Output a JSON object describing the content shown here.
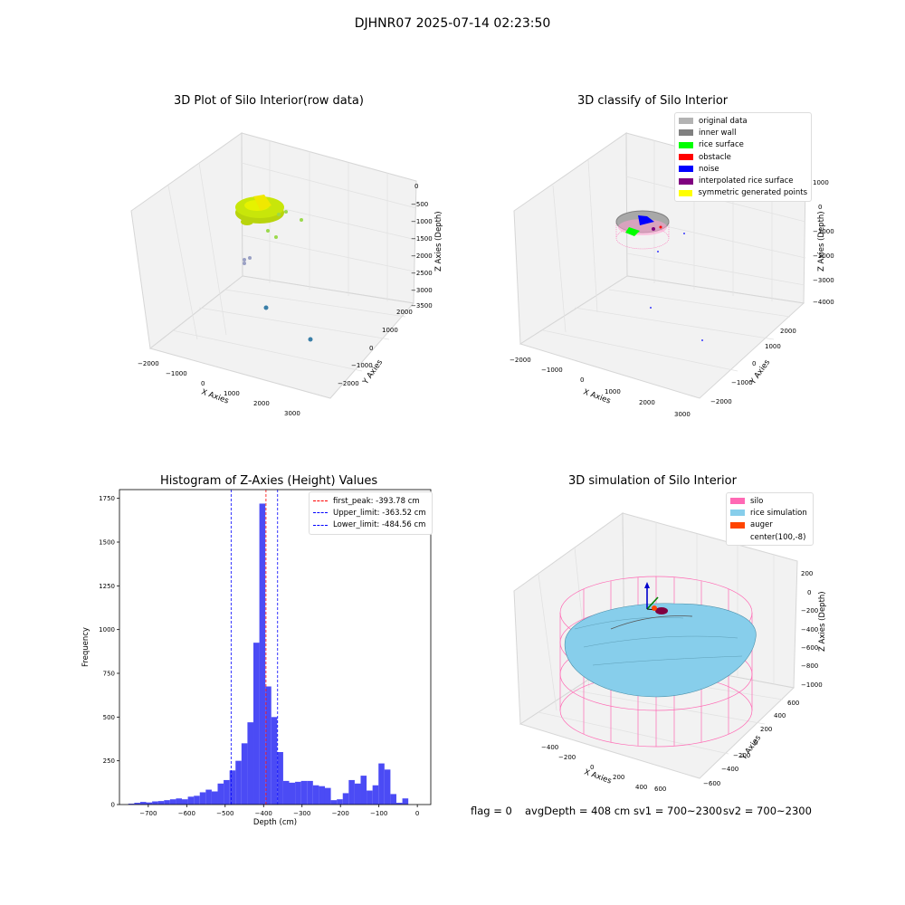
{
  "suptitle": "DJHNR07 2025-07-14 02:23:50",
  "status": {
    "flag": "flag = 0",
    "avg": "avgDepth = 408 cm",
    "sv1": "sv1 = 700~2300",
    "sv2": "sv2 = 700~2300"
  },
  "chart_data": [
    {
      "type": "scatter",
      "subtype": "3d",
      "title": "3D Plot of Silo Interior(row data)",
      "xlabel": "X Axies",
      "ylabel": "Y Axies",
      "zlabel": "Z Axies (Depth)",
      "x_ticks": [
        "−2000",
        "−1000",
        "0",
        "1000",
        "2000",
        "3000"
      ],
      "y_ticks": [
        "−2000",
        "−1000",
        "0",
        "1000",
        "2000"
      ],
      "z_ticks": [
        "0",
        "−500",
        "−1000",
        "−1500",
        "−2000",
        "−2500",
        "−3000",
        "−3500"
      ],
      "point_colors": [
        "#c8e60a",
        "#9bd94c",
        "#9aa0c4",
        "#3a7fa8"
      ]
    },
    {
      "type": "scatter",
      "subtype": "3d",
      "title": "3D classify of Silo Interior",
      "xlabel": "X Axies",
      "ylabel": "Y Axies",
      "zlabel": "Z Axies (Depth)",
      "x_ticks": [
        "−2000",
        "−1000",
        "0",
        "1000",
        "2000",
        "3000"
      ],
      "y_ticks": [
        "−2000",
        "−1000",
        "0",
        "1000",
        "2000"
      ],
      "z_ticks": [
        "1000",
        "0",
        "−1000",
        "−2000",
        "−3000",
        "−4000"
      ],
      "legend": [
        {
          "label": "original data",
          "color": "#b3b3b3"
        },
        {
          "label": "inner wall",
          "color": "#808080"
        },
        {
          "label": "rice surface",
          "color": "#00ff00"
        },
        {
          "label": "obstacle",
          "color": "#ff0000"
        },
        {
          "label": "noise",
          "color": "#0000ff"
        },
        {
          "label": "interpolated rice surface",
          "color": "#800080"
        },
        {
          "label": "symmetric generated points",
          "color": "#ffff00"
        }
      ]
    },
    {
      "type": "bar",
      "subtype": "histogram",
      "title": "Histogram of Z-Axies (Height) Values",
      "xlabel": "Depth (cm)",
      "ylabel": "Frequency",
      "xlim": [
        -775,
        35
      ],
      "ylim": [
        0,
        1800
      ],
      "bin_start": -752,
      "bin_width": 15.5,
      "values": [
        5,
        10,
        15,
        12,
        18,
        20,
        25,
        30,
        35,
        30,
        45,
        50,
        70,
        85,
        75,
        120,
        140,
        195,
        250,
        350,
        470,
        925,
        1720,
        675,
        500,
        300,
        135,
        125,
        130,
        135,
        135,
        110,
        105,
        95,
        25,
        30,
        65,
        140,
        120,
        165,
        80,
        110,
        235,
        200,
        60,
        10,
        35
      ],
      "bar_color": "#4b4bf5",
      "x_ticks": [
        -700,
        -600,
        -500,
        -400,
        -300,
        -200,
        -100,
        0
      ],
      "y_ticks": [
        0,
        250,
        500,
        750,
        1000,
        1250,
        1500,
        1750
      ],
      "x_tick_labels": [
        "−700",
        "−600",
        "−500",
        "−400",
        "−300",
        "−200",
        "−100",
        "0"
      ],
      "vlines": [
        {
          "x": -393.78,
          "color": "#ff0000",
          "label": "first_peak: -393.78 cm"
        },
        {
          "x": -363.52,
          "color": "#0000ff",
          "label": "Upper_limit: -363.52 cm"
        },
        {
          "x": -484.56,
          "color": "#0000ff",
          "label": "Lower_limit: -484.56 cm"
        }
      ],
      "legend_position": "top-right"
    },
    {
      "type": "scatter",
      "subtype": "3d-surface",
      "title": "3D simulation of Silo Interior",
      "xlabel": "X Axies",
      "ylabel": "Y Axies",
      "zlabel": "Z Axies (Depth)",
      "x_ticks": [
        "−400",
        "−200",
        "0",
        "200",
        "400",
        "600"
      ],
      "y_ticks": [
        "−600",
        "−400",
        "−200",
        "0",
        "200",
        "400",
        "600"
      ],
      "z_ticks": [
        "200",
        "0",
        "−200",
        "−400",
        "−600",
        "−800",
        "−1000"
      ],
      "legend": [
        {
          "label": "silo",
          "color": "#ff69b4"
        },
        {
          "label": "rice simulation",
          "color": "#87ceeb"
        },
        {
          "label": "auger",
          "color": "#ff4500"
        },
        {
          "label": "center(100,-8)",
          "color": ""
        }
      ]
    }
  ]
}
